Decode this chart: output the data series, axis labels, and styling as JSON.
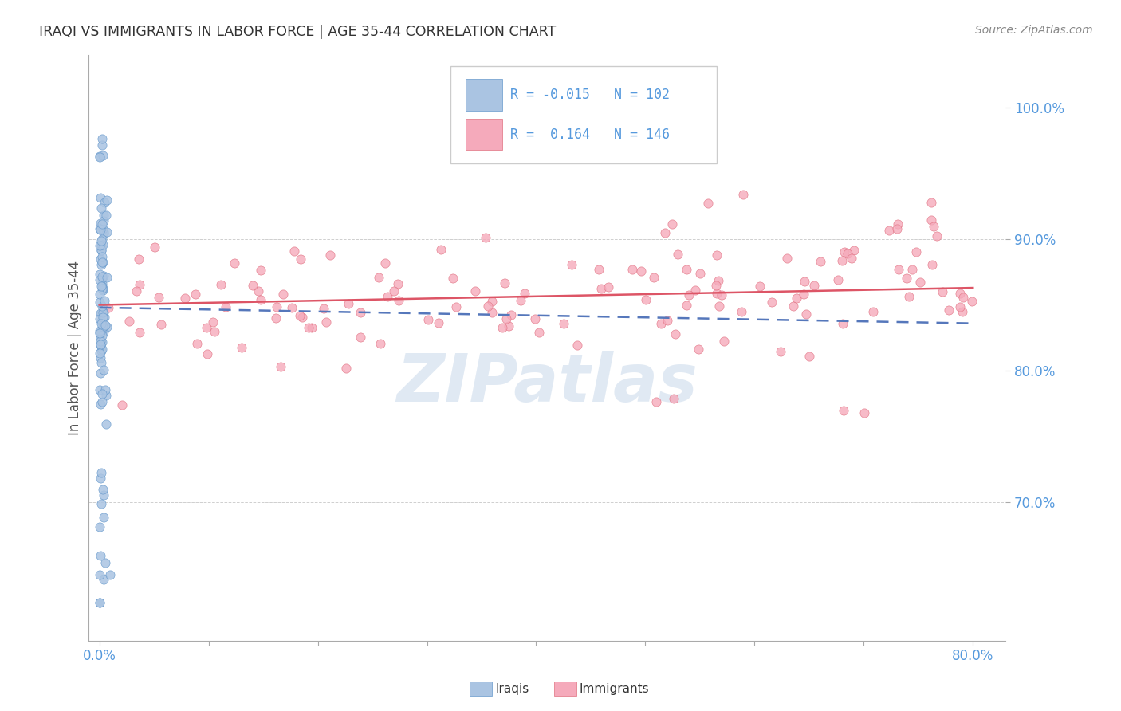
{
  "title": "IRAQI VS IMMIGRANTS IN LABOR FORCE | AGE 35-44 CORRELATION CHART",
  "source": "Source: ZipAtlas.com",
  "ylabel": "In Labor Force | Age 35-44",
  "legend_R_iraqis": "R = -0.015",
  "legend_N_iraqis": "N = 102",
  "legend_R_immigrants": "R =  0.164",
  "legend_N_immigrants": "N = 146",
  "iraqis_color": "#aac4e2",
  "iraqis_edge_color": "#6699cc",
  "immigrants_color": "#f5aabb",
  "immigrants_edge_color": "#e07080",
  "iraqis_trend_color": "#5577bb",
  "immigrants_trend_color": "#dd5566",
  "background_color": "#ffffff",
  "watermark_color": "#c8d8ea",
  "grid_color": "#bbbbbb",
  "axis_label_color": "#5599dd",
  "title_color": "#333333",
  "source_color": "#888888"
}
